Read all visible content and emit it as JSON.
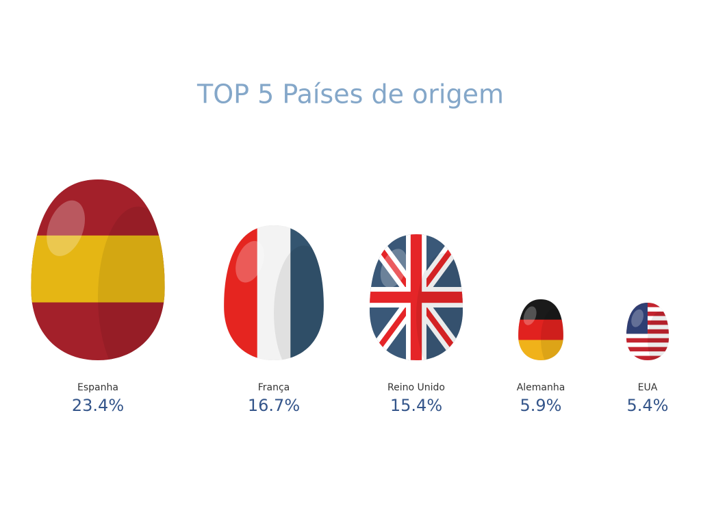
{
  "chart_data": {
    "type": "egg",
    "title": "TOP 5 Países de origem",
    "categories": [
      "Espanha",
      "França",
      "Reino Unido",
      "Alemanha",
      "EUA"
    ],
    "values": [
      23.4,
      16.7,
      15.4,
      5.9,
      5.4
    ],
    "value_labels": [
      "23.4%",
      "16.7%",
      "15.4%",
      "5.9%",
      "5.4%"
    ]
  }
}
